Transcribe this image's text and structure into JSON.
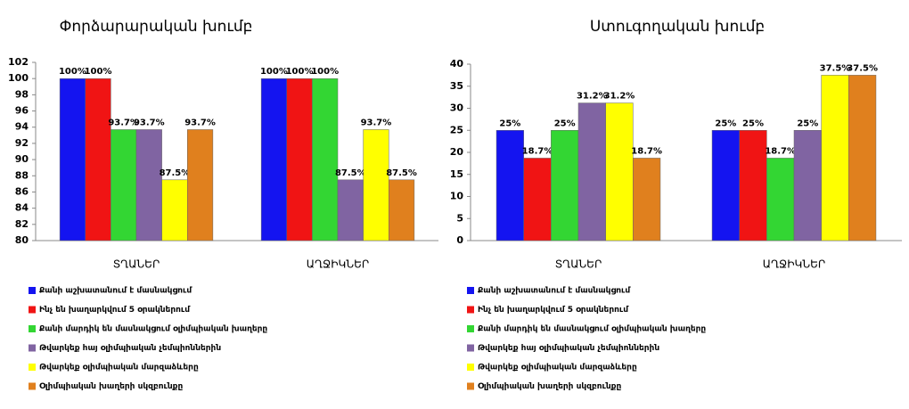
{
  "chart_data": [
    {
      "type": "bar",
      "title": "Փորձարարական խումբ",
      "categories": [
        "ՏՂԱՆԵՐ",
        "ԱՂՋԻԿՆԵՐ"
      ],
      "ylim": [
        80,
        102
      ],
      "yticks": [
        80,
        82,
        84,
        86,
        88,
        90,
        92,
        94,
        96,
        98,
        100,
        102
      ],
      "grid": false,
      "series": [
        {
          "name": "Քանի աշխատանում է մասնակցում",
          "color": "#1414f0",
          "values": [
            100,
            100
          ],
          "value_labels": [
            "100%",
            "100%"
          ]
        },
        {
          "name": "Ինչ են խաղարկվում 5 օրակներում",
          "color": "#f01414",
          "values": [
            100,
            100
          ],
          "value_labels": [
            "100%",
            "100%"
          ]
        },
        {
          "name": "Քանի մարդիկ են մասնակցում օլիմպիական խաղերը",
          "color": "#33d633",
          "values": [
            93.7,
            100
          ],
          "value_labels": [
            "93.7%",
            "100%"
          ]
        },
        {
          "name": "Թվարկեք հայ օլիմպիական չեմպիոններին",
          "color": "#8064a2",
          "values": [
            93.7,
            87.5
          ],
          "value_labels": [
            "93.7%",
            "87.5%"
          ]
        },
        {
          "name": "Թվարկեք օլիմպիական մարզաձևերը",
          "color": "#ffff00",
          "values": [
            87.5,
            93.7
          ],
          "value_labels": [
            "87.5%",
            "93.7%"
          ]
        },
        {
          "name": "Օլիմպիական խաղերի սկզբունքը",
          "color": "#e0801e",
          "values": [
            93.7,
            87.5
          ],
          "value_labels": [
            "93.7%",
            "87.5%"
          ]
        }
      ]
    },
    {
      "type": "bar",
      "title": "Ստուգողական խումբ",
      "categories": [
        "ՏՂԱՆԵՐ",
        "ԱՂՋԻԿՆԵՐ"
      ],
      "ylim": [
        0,
        40
      ],
      "yticks": [
        0,
        5,
        10,
        15,
        20,
        25,
        30,
        35,
        40
      ],
      "grid": false,
      "series": [
        {
          "name": "Քանի աշխատանում է մասնակցում",
          "color": "#1414f0",
          "values": [
            25,
            25
          ],
          "value_labels": [
            "25%",
            "25%"
          ]
        },
        {
          "name": "Ինչ են խաղարկվում 5 օրակներում",
          "color": "#f01414",
          "values": [
            18.7,
            25
          ],
          "value_labels": [
            "18.7%",
            "25%"
          ]
        },
        {
          "name": "Քանի մարդիկ են մասնակցում օլիմպիական խաղերը",
          "color": "#33d633",
          "values": [
            25,
            18.7
          ],
          "value_labels": [
            "25%",
            "18.7%"
          ]
        },
        {
          "name": "Թվարկեք հայ օլիմպիական չեմպիոններին",
          "color": "#8064a2",
          "values": [
            31.2,
            25
          ],
          "value_labels": [
            "31.2%",
            "25%"
          ]
        },
        {
          "name": "Թվարկեք օլիմպիական մարզաձևերը",
          "color": "#ffff00",
          "values": [
            31.2,
            37.5
          ],
          "value_labels": [
            "31.2%",
            "37.5%"
          ]
        },
        {
          "name": "Օլիմպիական խաղերի սկզբունքը",
          "color": "#e0801e",
          "values": [
            18.7,
            37.5
          ],
          "value_labels": [
            "18.7%",
            "37.5%"
          ]
        }
      ]
    }
  ]
}
